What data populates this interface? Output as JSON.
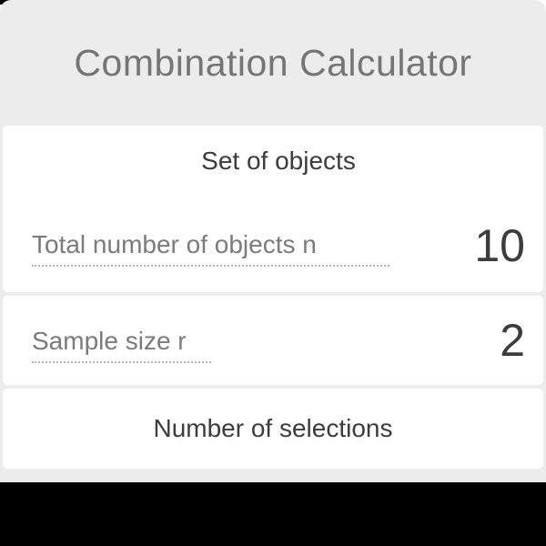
{
  "header": {
    "title": "Combination Calculator"
  },
  "card_set": {
    "heading": "Set of objects",
    "fields": [
      {
        "id": "n",
        "label": "Total number of objects n",
        "value": "10"
      },
      {
        "id": "r",
        "label": "Sample size r",
        "value": "2"
      }
    ]
  },
  "result": {
    "heading": "Number of selections"
  },
  "colors": {
    "panel_bg": "#ececec",
    "card_bg": "#ffffff",
    "title_text": "#757575",
    "heading_text": "#3c3c3c",
    "label_text": "#7b7b7b",
    "value_text": "#3c3c3c",
    "underline": "#b5b5b5",
    "footer_bg": "#000000"
  }
}
